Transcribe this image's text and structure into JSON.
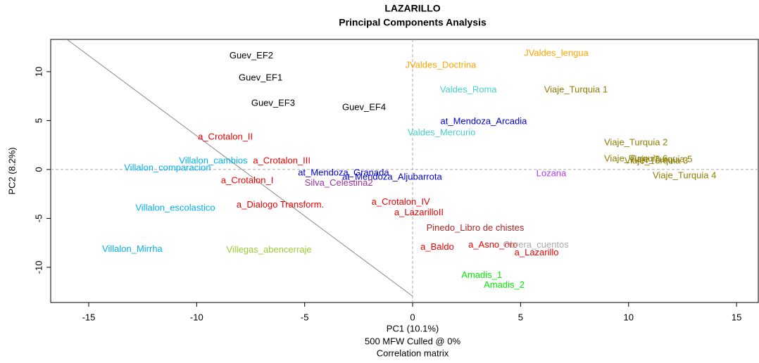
{
  "chart_data": {
    "type": "scatter",
    "title": "LAZARILLO",
    "subtitle": "Principal Components Analysis",
    "x_label": "PC1 (10.1%)",
    "y_label": "PC2 (8.2%)",
    "caption": [
      "500 MFW  Culled @ 0%",
      "Correlation matrix"
    ],
    "xlim": [
      -16.76,
      16.04
    ],
    "ylim": [
      -13.6,
      13.3
    ],
    "xticks": [
      -15,
      -10,
      -5,
      0,
      5,
      10,
      15
    ],
    "yticks": [
      -10,
      -5,
      0,
      5,
      10
    ],
    "zero_lines": true,
    "labels": [
      "Guev_EF2",
      "Guev_EF1",
      "Guev_EF3",
      "Guev_EF4",
      "JValdes_Doctrina",
      "JValdes_lengua",
      "Valdes_Roma",
      "Viaje_Turquia 1",
      "at_Mendoza_Arcadia",
      "Valdes_Mercurio",
      "a_Crotalon_II",
      "Viaje_Turquia 2",
      "Viaje_Turquia 6",
      "Viaje_Turquia 5",
      "Viaje_Turquia 3",
      "Viaje_Turquia 4",
      "Villalon_cambios",
      "a_Crotalon_III",
      "Villalon_comparacion",
      "at_Mendoza_Granada",
      "at_Mendoza_Aljubarrota",
      "Silva_Celestina2",
      "Lozana",
      "a_Crotalon_I",
      "Villalon_escolastico",
      "a_Dialogo Transform.",
      "a_Crotalon_IV",
      "a_LazarilloII",
      "Pinedo_Libro de chistes",
      "Villalon_Mirrha",
      "Villegas_abencerraje",
      "a_Baldo",
      "a_Asno_oro",
      "Obrera_cuentos",
      "a_Lazarillo",
      "Amadis_1",
      "Amadis_2"
    ],
    "x": [
      -7.47,
      -7.04,
      -6.46,
      -2.25,
      1.3,
      6.65,
      2.58,
      7.56,
      3.29,
      1.34,
      -8.67,
      10.34,
      10.34,
      11.48,
      11.28,
      12.59,
      -9.23,
      -6.06,
      -11.35,
      -3.2,
      -0.95,
      -3.42,
      6.42,
      -7.66,
      -10.99,
      -6.13,
      -0.55,
      0.29,
      2.9,
      -12.98,
      -6.65,
      1.14,
      3.72,
      5.71,
      5.74,
      3.2,
      4.24
    ],
    "y": [
      11.62,
      9.33,
      6.74,
      6.31,
      10.62,
      11.84,
      8.11,
      8.11,
      4.88,
      3.73,
      3.3,
      2.73,
      1.08,
      1.0,
      0.86,
      -0.65,
      0.86,
      0.86,
      0.14,
      -0.36,
      -0.79,
      -1.43,
      -0.43,
      -1.15,
      -3.95,
      -3.66,
      -3.37,
      -4.45,
      -6.03,
      -8.18,
      -8.25,
      -7.96,
      -7.75,
      -7.75,
      -8.54,
      -10.83,
      -11.84
    ],
    "colors": [
      "#000000",
      "#000000",
      "#000000",
      "#000000",
      "#FFA500",
      "#FFA500",
      "#48D1CC",
      "#8B7D00",
      "#0000CD",
      "#48D1CC",
      "#EE0000",
      "#8B7D00",
      "#8B7D00",
      "#8B7D00",
      "#8B7D00",
      "#8B7D00",
      "#00B2EE",
      "#EE0000",
      "#00B2EE",
      "#0000CD",
      "#0000CD",
      "#9B30A0",
      "#B23AEE",
      "#EE0000",
      "#00B2EE",
      "#EE0000",
      "#EE0000",
      "#EE0000",
      "#B22222",
      "#00B2EE",
      "#9ACD32",
      "#EE0000",
      "#EE0000",
      "#A9A9A9",
      "#EE0000",
      "#00EE00",
      "#00EE00"
    ]
  }
}
